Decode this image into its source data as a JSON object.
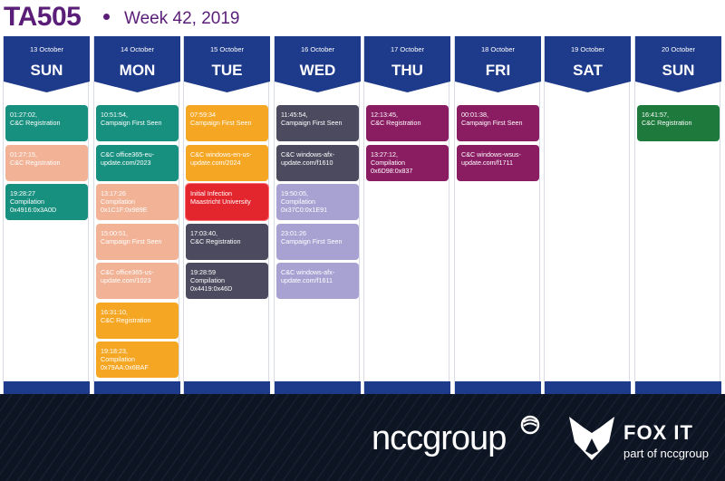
{
  "header": {
    "title": "TA505",
    "week": "Week 42, 2019"
  },
  "colors": {
    "header_purple": "#5a1e78",
    "day_banner": "#1e3a8a",
    "teal": "#17907f",
    "peach": "#f1b296",
    "orange": "#f5a623",
    "red": "#e3262e",
    "slate": "#4b4a5e",
    "lavender": "#a7a2d2",
    "plum": "#8a1c62",
    "green": "#1d7a3c"
  },
  "days": [
    {
      "date": "13 October",
      "dow": "SUN",
      "events": [
        {
          "time": "01:27:02,",
          "text": "C&C Registration",
          "color": "teal"
        },
        {
          "time": "01:27:15,",
          "text": "C&C Registration",
          "color": "peach"
        },
        {
          "time": "19:28:27",
          "text": "Compilation",
          "extra": "0x4916:0x3A0D",
          "color": "teal"
        }
      ]
    },
    {
      "date": "14 October",
      "dow": "MON",
      "events": [
        {
          "time": "10:51:54,",
          "text": "Campaign First Seen",
          "color": "teal"
        },
        {
          "time": "",
          "text": "C&C office365-eu-",
          "extra": "update.com/2023",
          "color": "teal"
        },
        {
          "time": "13:17:26",
          "text": "Compilation",
          "extra": "0x1C1F:0x989E",
          "color": "peach"
        },
        {
          "time": "15:00:51,",
          "text": "Campaign First Seen",
          "color": "peach"
        },
        {
          "time": "",
          "text": "C&C office365-us-",
          "extra": "update.com/1023",
          "color": "peach"
        },
        {
          "time": "16:31:10,",
          "text": "C&C Registration",
          "color": "orange"
        },
        {
          "time": "19:18:23,",
          "text": "Compilation",
          "extra": "0x79AA:0x6BAF",
          "color": "orange"
        }
      ]
    },
    {
      "date": "15 October",
      "dow": "TUE",
      "events": [
        {
          "time": "07:59:34",
          "text": "Campaign First Seen",
          "color": "orange"
        },
        {
          "time": "",
          "text": "C&C windows-en-us-",
          "extra": "update.com/2024",
          "color": "orange"
        },
        {
          "time": "",
          "text": "Initial Infection",
          "extra": "Maastricht University",
          "color": "red"
        },
        {
          "time": "17:03:40,",
          "text": "C&C Registration",
          "color": "slate"
        },
        {
          "time": "19:28:59",
          "text": "Compilation",
          "extra": "0x4419:0x46D",
          "color": "slate"
        }
      ]
    },
    {
      "date": "16 October",
      "dow": "WED",
      "events": [
        {
          "time": "11:45:54,",
          "text": "Campaign First Seen",
          "color": "slate"
        },
        {
          "time": "",
          "text": "C&C windows-afx-",
          "extra": "update.com/f1610",
          "color": "slate"
        },
        {
          "time": "19:50:05,",
          "text": "Compilation",
          "extra": "0x37C0:0x1E91",
          "color": "lavender"
        },
        {
          "time": "23:01:26",
          "text": "Campaign First Seen",
          "color": "lavender"
        },
        {
          "time": "",
          "text": "C&C windows-afx-",
          "extra": "update.com/f1611",
          "color": "lavender"
        }
      ]
    },
    {
      "date": "17 October",
      "dow": "THU",
      "events": [
        {
          "time": "12:13:45,",
          "text": "C&C Registration",
          "color": "plum"
        },
        {
          "time": "13:27:12,",
          "text": "Compilation",
          "extra": "0x6D98:0x837",
          "color": "plum"
        }
      ]
    },
    {
      "date": "18 October",
      "dow": "FRI",
      "events": [
        {
          "time": "00:01:38,",
          "text": "Campaign First Seen",
          "color": "plum"
        },
        {
          "time": "",
          "text": "C&C windows-wsus-",
          "extra": "update.com/f1711",
          "color": "plum"
        }
      ]
    },
    {
      "date": "19 October",
      "dow": "SAT",
      "events": []
    },
    {
      "date": "20 October",
      "dow": "SUN",
      "events": [
        {
          "time": "16:41:57,",
          "text": "C&C Registration",
          "color": "green"
        }
      ]
    }
  ],
  "footer": {
    "ncc_logo": "nccgroup",
    "fox_name": "FOX IT",
    "fox_sub": "part of nccgroup"
  }
}
